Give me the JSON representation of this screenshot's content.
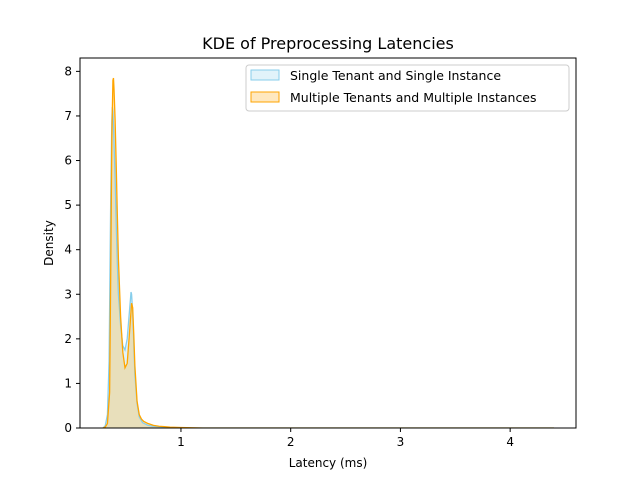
{
  "chart_data": {
    "type": "area",
    "title": "KDE of Preprocessing Latencies",
    "xlabel": "Latency (ms)",
    "ylabel": "Density",
    "xlim": [
      0.08,
      4.6
    ],
    "ylim": [
      0,
      8.3
    ],
    "xticks": [
      "1",
      "2",
      "3",
      "4"
    ],
    "yticks": [
      "0",
      "1",
      "2",
      "3",
      "4",
      "5",
      "6",
      "7",
      "8"
    ],
    "grid": false,
    "legend_position": "top-right",
    "series": [
      {
        "name": "Single Tenant and Single Instance",
        "color": "#87CEEB",
        "fill": "#87CEEB",
        "fill_opacity": 0.25,
        "x": [
          0.29,
          0.31,
          0.33,
          0.345,
          0.36,
          0.37,
          0.375,
          0.38,
          0.385,
          0.39,
          0.4,
          0.41,
          0.42,
          0.43,
          0.45,
          0.47,
          0.49,
          0.51,
          0.53,
          0.545,
          0.55,
          0.56,
          0.57,
          0.58,
          0.6,
          0.62,
          0.65,
          0.7,
          0.75,
          0.8,
          0.85,
          0.9,
          1.0,
          1.1,
          4.4
        ],
        "y": [
          0,
          0.05,
          0.3,
          1.5,
          5.2,
          6.9,
          7.2,
          7.1,
          6.8,
          6.4,
          5.6,
          4.6,
          3.7,
          3.0,
          2.3,
          1.85,
          1.75,
          2.0,
          2.6,
          3.05,
          3.0,
          2.6,
          1.9,
          1.2,
          0.55,
          0.25,
          0.12,
          0.06,
          0.04,
          0.03,
          0.02,
          0.01,
          0.005,
          0,
          0
        ]
      },
      {
        "name": "Multiple Tenants and Multiple Instances",
        "color": "#FFA500",
        "fill": "#FFA500",
        "fill_opacity": 0.25,
        "x": [
          0.29,
          0.31,
          0.33,
          0.35,
          0.36,
          0.37,
          0.38,
          0.385,
          0.39,
          0.4,
          0.41,
          0.42,
          0.43,
          0.45,
          0.47,
          0.49,
          0.51,
          0.53,
          0.55,
          0.56,
          0.57,
          0.58,
          0.6,
          0.62,
          0.64,
          0.66,
          0.7,
          0.75,
          0.8,
          0.85,
          0.9,
          1.0,
          1.1,
          1.2,
          4.4
        ],
        "y": [
          0,
          0.02,
          0.1,
          0.8,
          3.5,
          6.5,
          7.8,
          7.85,
          7.6,
          6.9,
          5.9,
          4.8,
          3.8,
          2.5,
          1.7,
          1.35,
          1.45,
          2.1,
          2.8,
          2.7,
          2.1,
          1.4,
          0.6,
          0.3,
          0.2,
          0.15,
          0.1,
          0.06,
          0.04,
          0.03,
          0.02,
          0.01,
          0.005,
          0,
          0
        ]
      }
    ]
  }
}
